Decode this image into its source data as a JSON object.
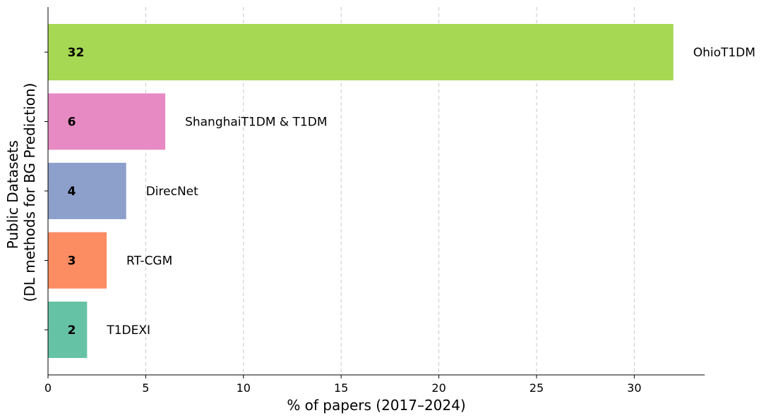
{
  "chart_data": {
    "type": "bar",
    "orientation": "horizontal",
    "categories": [
      "T1DEXI",
      "RT-CGM",
      "DirecNet",
      "ShanghaiT1DM & T1DM",
      "OhioT1DM"
    ],
    "values": [
      2,
      3,
      4,
      6,
      32
    ],
    "value_labels": [
      "2",
      "3",
      "4",
      "6",
      "32"
    ],
    "colors": [
      "#66c2a5",
      "#fc8d62",
      "#8da0cb",
      "#e78ac3",
      "#a6d854"
    ],
    "xlabel": "% of papers (2017–2024)",
    "ylabel_line1": "Public Datasets",
    "ylabel_line2": "(DL methods for BG Prediction)",
    "xlim": [
      0,
      33.6
    ],
    "xticks": [
      0,
      5,
      10,
      15,
      20,
      25,
      30
    ],
    "xtick_labels": [
      "0",
      "5",
      "10",
      "15",
      "20",
      "25",
      "30"
    ],
    "grid": "x-dashed",
    "legend": "none"
  }
}
